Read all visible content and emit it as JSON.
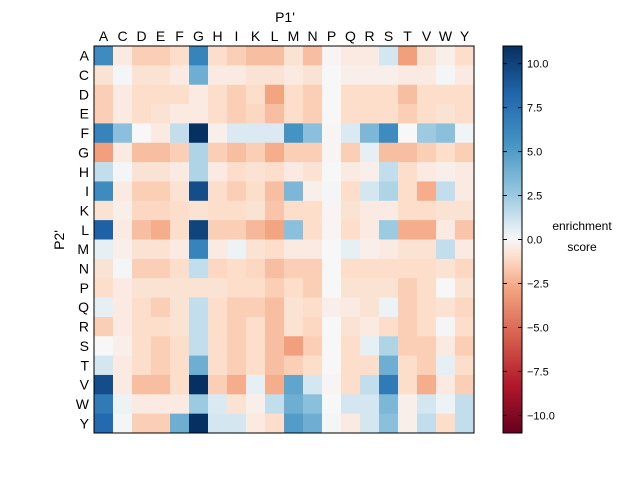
{
  "chart_data": {
    "type": "heatmap",
    "x_title": "P1'",
    "y_title": "P2'",
    "x_categories": [
      "A",
      "C",
      "D",
      "E",
      "F",
      "G",
      "H",
      "I",
      "K",
      "L",
      "M",
      "N",
      "P",
      "Q",
      "R",
      "S",
      "T",
      "V",
      "W",
      "Y"
    ],
    "y_categories": [
      "A",
      "C",
      "D",
      "E",
      "F",
      "G",
      "H",
      "I",
      "K",
      "L",
      "M",
      "N",
      "P",
      "Q",
      "R",
      "S",
      "T",
      "V",
      "W",
      "Y"
    ],
    "values": [
      [
        6.0,
        -0.5,
        -1.5,
        -1.5,
        -1.0,
        6.5,
        -1.0,
        -1.5,
        -2.0,
        -2.0,
        -0.8,
        -2.0,
        -0.1,
        -0.5,
        -0.5,
        1.0,
        -3.0,
        -0.8,
        -0.3,
        -1.0
      ],
      [
        -0.8,
        0.1,
        -0.8,
        -0.8,
        -0.5,
        4.0,
        -0.5,
        -0.5,
        -0.8,
        -0.8,
        -0.5,
        -0.8,
        0.0,
        -0.3,
        -0.3,
        -0.3,
        -0.5,
        -0.5,
        0.1,
        -0.5
      ],
      [
        -1.5,
        -0.5,
        -1.0,
        -1.0,
        -1.0,
        -0.5,
        -1.0,
        -1.5,
        -1.0,
        -2.8,
        -1.0,
        -1.5,
        0.0,
        -1.0,
        -1.0,
        -1.0,
        -2.0,
        -1.0,
        -1.0,
        -1.0
      ],
      [
        -1.5,
        -0.5,
        -1.0,
        -0.8,
        -0.5,
        -0.5,
        -1.0,
        -1.5,
        -1.2,
        -2.0,
        -1.0,
        -1.5,
        0.0,
        -1.0,
        -1.0,
        -1.0,
        -1.5,
        -1.0,
        -0.8,
        -1.0
      ],
      [
        6.5,
        3.0,
        0.0,
        -0.5,
        1.5,
        11.0,
        -0.3,
        0.8,
        0.8,
        0.8,
        5.5,
        3.0,
        -0.1,
        0.8,
        3.5,
        6.0,
        0.0,
        2.5,
        3.0,
        0.2
      ],
      [
        -3.0,
        -0.5,
        -2.0,
        -2.0,
        -1.5,
        2.0,
        -1.5,
        -2.0,
        -1.5,
        -2.5,
        -1.5,
        -1.5,
        -0.1,
        -1.5,
        0.5,
        -2.0,
        -2.0,
        -1.5,
        -1.0,
        -1.5
      ],
      [
        1.5,
        0.1,
        -0.8,
        -0.8,
        -0.5,
        2.0,
        -0.5,
        -1.0,
        -0.8,
        -1.0,
        -0.5,
        -0.8,
        0.0,
        -0.5,
        -0.3,
        1.5,
        -1.0,
        -0.5,
        -0.3,
        -0.5
      ],
      [
        6.0,
        -0.5,
        -1.5,
        -1.5,
        -0.8,
        9.5,
        -1.0,
        -1.5,
        -1.0,
        -2.0,
        3.5,
        -0.3,
        0.1,
        -1.0,
        1.0,
        2.0,
        -1.0,
        -2.5,
        1.5,
        -0.5
      ],
      [
        -0.8,
        -0.3,
        -1.2,
        -1.2,
        -1.0,
        -0.8,
        -1.0,
        -1.0,
        -0.8,
        -1.8,
        -1.0,
        -1.0,
        -0.1,
        -0.8,
        -0.5,
        -0.5,
        -1.0,
        -1.0,
        -0.8,
        -0.8
      ],
      [
        8.5,
        -0.5,
        -2.0,
        -2.5,
        -1.0,
        10.0,
        -1.5,
        -1.5,
        -2.2,
        -2.8,
        3.0,
        -1.0,
        -0.1,
        -1.0,
        -0.5,
        2.5,
        -2.5,
        -2.5,
        -0.5,
        -1.8
      ],
      [
        0.5,
        -0.3,
        -0.8,
        -0.8,
        -0.5,
        6.5,
        -0.5,
        0.3,
        -0.8,
        -1.0,
        -0.5,
        -0.5,
        0.0,
        0.5,
        -0.3,
        -0.5,
        -0.8,
        -0.8,
        1.5,
        -0.5
      ],
      [
        -0.8,
        0.1,
        -1.5,
        -1.5,
        -1.0,
        1.5,
        -1.2,
        -1.0,
        -1.2,
        -2.0,
        -1.5,
        -1.5,
        0.0,
        -1.0,
        -1.0,
        -1.0,
        -1.0,
        -1.0,
        -0.8,
        -1.2
      ],
      [
        -1.0,
        -0.5,
        -0.8,
        -0.8,
        -0.8,
        -0.8,
        -0.8,
        -1.0,
        -1.0,
        -1.5,
        -1.0,
        -1.5,
        0.0,
        -0.8,
        -0.8,
        -0.8,
        -1.5,
        -1.0,
        0.0,
        -0.8
      ],
      [
        0.5,
        -0.5,
        -1.0,
        -1.5,
        -0.8,
        1.5,
        -1.0,
        -1.5,
        -1.5,
        -2.0,
        -0.8,
        -1.0,
        -0.3,
        -0.5,
        -0.8,
        0.3,
        -1.5,
        -1.0,
        -0.8,
        -1.2
      ],
      [
        -1.5,
        -0.5,
        -1.0,
        -1.0,
        -0.8,
        1.5,
        -1.0,
        -1.5,
        -1.0,
        -2.0,
        -0.8,
        -1.2,
        0.0,
        -0.8,
        -0.5,
        -1.0,
        -1.5,
        -1.0,
        0.1,
        -1.0
      ],
      [
        0.0,
        -0.3,
        -1.0,
        -1.5,
        -1.0,
        1.5,
        -1.0,
        -1.5,
        -1.0,
        -2.0,
        -3.0,
        -1.5,
        0.0,
        -1.0,
        0.5,
        2.0,
        -1.5,
        -1.5,
        -0.5,
        -1.5
      ],
      [
        1.0,
        -0.5,
        -1.0,
        -1.5,
        -1.0,
        4.0,
        -1.0,
        -1.5,
        -1.0,
        -2.0,
        -1.5,
        -1.0,
        0.0,
        -1.0,
        -1.0,
        4.0,
        -1.0,
        -1.5,
        0.5,
        -1.0
      ],
      [
        9.5,
        -0.5,
        -2.0,
        -2.0,
        -1.0,
        11.0,
        -1.5,
        -2.5,
        0.5,
        -2.5,
        4.5,
        1.0,
        -0.1,
        -1.0,
        1.5,
        7.0,
        -1.0,
        -2.5,
        -0.5,
        -1.5
      ],
      [
        7.0,
        0.3,
        -0.5,
        -0.5,
        -0.5,
        2.5,
        0.8,
        -0.8,
        -0.3,
        1.5,
        4.0,
        3.0,
        0.0,
        1.0,
        1.0,
        3.5,
        -0.3,
        1.0,
        0.3,
        1.5
      ],
      [
        8.0,
        0.1,
        -1.5,
        -1.5,
        4.0,
        11.0,
        1.0,
        1.0,
        -0.5,
        -1.0,
        5.0,
        4.0,
        0.1,
        -0.5,
        1.0,
        3.0,
        -0.3,
        1.5,
        -1.0,
        1.5
      ]
    ],
    "vmin": -11,
    "vmax": 11,
    "colormap": "RdBu",
    "colorbar": {
      "label_line1": "enrichment",
      "label_line2": "score",
      "ticks": [
        10.0,
        7.5,
        5.0,
        2.5,
        0.0,
        -2.5,
        -5.0,
        -7.5,
        -10.0
      ],
      "tick_labels": [
        "10.0",
        "7.5",
        "5.0",
        "2.5",
        "0.0",
        "−2.5",
        "−5.0",
        "−7.5",
        "−10.0"
      ]
    },
    "colors": {
      "min": "#67001f",
      "neg_mid": "#f4a582",
      "zero": "#f7f7f7",
      "pos_mid": "#92c5de",
      "max": "#053061"
    }
  }
}
